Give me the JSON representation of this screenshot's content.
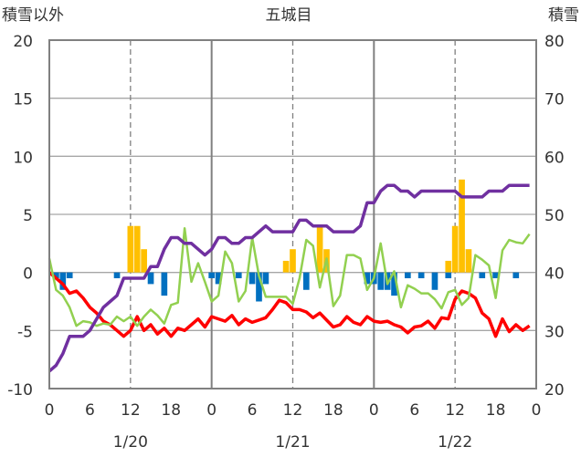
{
  "chart_data": {
    "type": "bar+line",
    "title": "五城目",
    "y_left_label": "積雪以外",
    "y_right_label": "積雪",
    "y_left_range": [
      -10,
      20
    ],
    "y_right_range": [
      20,
      80
    ],
    "y_left_ticks": [
      "20",
      "15",
      "10",
      "5",
      "0",
      "-5",
      "-10"
    ],
    "y_left_tick_values": [
      20,
      15,
      10,
      5,
      0,
      -5,
      -10
    ],
    "y_right_ticks": [
      "80",
      "70",
      "60",
      "50",
      "40",
      "30",
      "20"
    ],
    "y_right_tick_values": [
      80,
      70,
      60,
      50,
      40,
      30,
      20
    ],
    "x_range": [
      0,
      72
    ],
    "x_ticks": [
      "0",
      "6",
      "12",
      "18",
      "0",
      "6",
      "12",
      "18",
      "0",
      "6",
      "12",
      "18",
      "0"
    ],
    "x_tick_values": [
      0,
      6,
      12,
      18,
      24,
      30,
      36,
      42,
      48,
      54,
      60,
      66,
      72
    ],
    "date_labels": [
      "1/20",
      "1/21",
      "1/22"
    ],
    "date_label_hours": [
      12,
      36,
      60
    ],
    "solid_day_lines_at": [
      24,
      48
    ],
    "dashed_noon_lines_at": [
      12,
      36,
      60
    ],
    "grid": "horizontal lines at every 5 units",
    "series": [
      {
        "color": "#ffc000",
        "kind": "bar",
        "axis": "left",
        "x": [
          12,
          13,
          14,
          35,
          36,
          40,
          41,
          59,
          60,
          61,
          62
        ],
        "values": [
          4,
          4,
          2,
          1,
          2,
          4,
          2,
          1,
          4,
          8,
          2
        ]
      },
      {
        "color": "#0070c0",
        "kind": "bar",
        "axis": "left",
        "x": [
          1,
          2,
          3,
          10,
          15,
          17,
          24,
          25,
          28,
          30,
          31,
          32,
          38,
          47,
          48,
          49,
          50,
          51,
          53,
          55,
          57,
          59,
          64,
          66,
          69
        ],
        "values": [
          -0.5,
          -1.5,
          -0.5,
          -0.5,
          -1,
          -2,
          -0.5,
          -1,
          -0.5,
          -1,
          -2.5,
          -1,
          -1.5,
          -1,
          -1,
          -1.5,
          -1.5,
          -2,
          -0.5,
          -0.5,
          -1.5,
          -0.5,
          -0.5,
          -0.5,
          -0.5
        ]
      },
      {
        "color": "#ff0000",
        "kind": "line",
        "axis": "left",
        "x": [
          0,
          1,
          2,
          3,
          4,
          5,
          6,
          7,
          8,
          9,
          10,
          11,
          12,
          13,
          14,
          15,
          16,
          17,
          18,
          19,
          20,
          21,
          22,
          23,
          24,
          25,
          26,
          27,
          28,
          29,
          30,
          31,
          32,
          33,
          34,
          35,
          36,
          37,
          38,
          39,
          40,
          41,
          42,
          43,
          44,
          45,
          46,
          47,
          48,
          49,
          50,
          51,
          52,
          53,
          54,
          55,
          56,
          57,
          58,
          59,
          60,
          61,
          62,
          63,
          64,
          65,
          66,
          67,
          68,
          69,
          70,
          71
        ],
        "values": [
          0,
          -0.5,
          -1,
          -1.8,
          -1.6,
          -2.2,
          -3,
          -3.5,
          -4.2,
          -4.5,
          -5,
          -5.5,
          -5,
          -3.8,
          -5,
          -4.5,
          -5.3,
          -4.8,
          -5.5,
          -4.8,
          -5,
          -4.5,
          -4,
          -4.7,
          -3.8,
          -4,
          -4.2,
          -3.7,
          -4.5,
          -4,
          -4.3,
          -4.1,
          -3.9,
          -3.2,
          -2.4,
          -2.6,
          -3.2,
          -3.2,
          -3.4,
          -3.9,
          -3.5,
          -4.1,
          -4.7,
          -4.5,
          -3.8,
          -4.3,
          -4.5,
          -3.8,
          -4.2,
          -4.3,
          -4.2,
          -4.5,
          -4.7,
          -5.2,
          -4.7,
          -4.6,
          -4.2,
          -4.8,
          -3.9,
          -4,
          -2.3,
          -1.6,
          -1.8,
          -2.2,
          -3.5,
          -4,
          -5.5,
          -4,
          -5.1,
          -4.5,
          -5,
          -4.6
        ]
      },
      {
        "color": "#92d050",
        "kind": "line",
        "axis": "left",
        "x": [
          0,
          1,
          2,
          3,
          4,
          5,
          6,
          7,
          8,
          9,
          10,
          11,
          12,
          13,
          14,
          15,
          16,
          17,
          18,
          19,
          20,
          21,
          22,
          23,
          24,
          25,
          26,
          27,
          28,
          29,
          30,
          31,
          32,
          33,
          34,
          35,
          36,
          37,
          38,
          39,
          40,
          41,
          42,
          43,
          44,
          45,
          46,
          47,
          48,
          49,
          50,
          51,
          52,
          53,
          54,
          55,
          56,
          57,
          58,
          59,
          60,
          61,
          62,
          63,
          64,
          65,
          66,
          67,
          68,
          69,
          70,
          71
        ],
        "values": [
          1.2,
          -1.5,
          -2,
          -3,
          -4.6,
          -4.2,
          -4.3,
          -4.6,
          -4.4,
          -4.5,
          -3.8,
          -4.2,
          -3.8,
          -4.6,
          -3.8,
          -3.2,
          -3.7,
          -4.4,
          -2.8,
          -2.6,
          3.8,
          -0.8,
          0.8,
          -0.8,
          -2.5,
          -2,
          1.8,
          0.8,
          -2.5,
          -1.6,
          3,
          -0.3,
          -2.1,
          -2.1,
          -2.1,
          -2.1,
          -2.7,
          -0.5,
          2.8,
          2.3,
          -1.3,
          1.2,
          -2.9,
          -2,
          1.5,
          1.5,
          1.2,
          -1.5,
          -0.5,
          2.5,
          -1,
          0.1,
          -3,
          -1.1,
          -1.4,
          -1.8,
          -1.8,
          -2.3,
          -3.1,
          -1.7,
          -1.5,
          -2.8,
          -2.2,
          1.5,
          1.1,
          0.6,
          -2.2,
          1.9,
          2.8,
          2.6,
          2.5,
          3.3
        ]
      },
      {
        "color": "#7030a0",
        "kind": "line",
        "axis": "right",
        "x": [
          0,
          1,
          2,
          3,
          4,
          5,
          6,
          7,
          8,
          9,
          10,
          11,
          12,
          13,
          14,
          15,
          16,
          17,
          18,
          19,
          20,
          21,
          22,
          23,
          24,
          25,
          26,
          27,
          28,
          29,
          30,
          31,
          32,
          33,
          34,
          35,
          36,
          37,
          38,
          39,
          40,
          41,
          42,
          43,
          44,
          45,
          46,
          47,
          48,
          49,
          50,
          51,
          52,
          53,
          54,
          55,
          56,
          57,
          58,
          59,
          60,
          61,
          62,
          63,
          64,
          65,
          66,
          67,
          68,
          69,
          70,
          71
        ],
        "values": [
          23,
          24,
          26,
          29,
          29,
          29,
          30,
          32,
          34,
          35,
          36,
          39,
          39,
          39,
          39,
          41,
          41,
          44,
          46,
          46,
          45,
          45,
          44,
          43,
          44,
          46,
          46,
          45,
          45,
          46,
          46,
          47,
          48,
          47,
          47,
          47,
          47,
          49,
          49,
          48,
          48,
          48,
          47,
          47,
          47,
          47,
          48,
          52,
          52,
          54,
          55,
          55,
          54,
          54,
          53,
          54,
          54,
          54,
          54,
          54,
          54,
          53,
          53,
          53,
          53,
          54,
          54,
          54,
          55,
          55,
          55,
          55
        ]
      }
    ]
  }
}
